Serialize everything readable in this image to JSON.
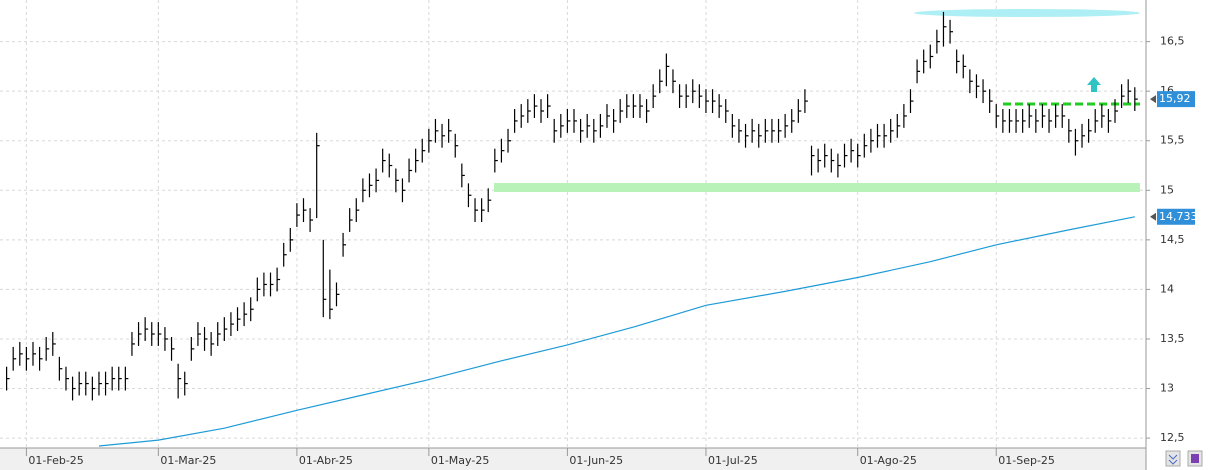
{
  "chart_data": {
    "type": "ohlc",
    "xlim": [
      -1,
      173
    ],
    "ylim": [
      12.4,
      16.92
    ],
    "xticks": [
      {
        "value": 3,
        "label": "01-Feb-25"
      },
      {
        "value": 23,
        "label": "01-Mar-25"
      },
      {
        "value": 44,
        "label": "01-Abr-25"
      },
      {
        "value": 64,
        "label": "01-May-25"
      },
      {
        "value": 85,
        "label": "01-Jun-25"
      },
      {
        "value": 106,
        "label": "01-Jul-25"
      },
      {
        "value": 129,
        "label": "01-Ago-25"
      },
      {
        "value": 150,
        "label": "01-Sep-25"
      }
    ],
    "yticks": [
      {
        "value": 12.5,
        "label": "12,5"
      },
      13,
      {
        "value": 13.5,
        "label": "13,5"
      },
      14,
      {
        "value": 14.5,
        "label": "14,5"
      },
      15,
      {
        "value": 15.5,
        "label": "15,5"
      },
      16,
      {
        "value": 16.5,
        "label": "16,5"
      }
    ],
    "grid": true,
    "color": "#000000",
    "close": [
      13.1,
      13.3,
      13.35,
      13.3,
      13.35,
      13.3,
      13.4,
      13.45,
      13.2,
      13.1,
      13.0,
      13.05,
      13.05,
      13.0,
      13.05,
      13.05,
      13.1,
      13.1,
      13.1,
      13.45,
      13.55,
      13.6,
      13.55,
      13.55,
      13.5,
      13.4,
      13.1,
      13.05,
      13.4,
      13.55,
      13.5,
      13.45,
      13.55,
      13.6,
      13.65,
      13.7,
      13.75,
      13.8,
      14.0,
      14.05,
      14.05,
      14.1,
      14.35,
      14.5,
      14.75,
      14.8,
      14.7,
      15.45,
      13.9,
      13.8,
      13.95,
      14.45,
      14.7,
      14.8,
      15.0,
      15.05,
      15.1,
      15.3,
      15.25,
      15.1,
      15.0,
      15.2,
      15.3,
      15.4,
      15.5,
      15.6,
      15.55,
      15.6,
      15.45,
      15.15,
      14.95,
      14.8,
      14.8,
      14.9,
      15.3,
      15.4,
      15.5,
      15.7,
      15.75,
      15.8,
      15.85,
      15.8,
      15.85,
      15.6,
      15.65,
      15.7,
      15.7,
      15.6,
      15.65,
      15.6,
      15.65,
      15.75,
      15.7,
      15.8,
      15.85,
      15.85,
      15.85,
      15.8,
      15.95,
      16.1,
      16.25,
      16.1,
      15.95,
      15.95,
      16.0,
      15.95,
      15.9,
      15.9,
      15.85,
      15.8,
      15.65,
      15.6,
      15.55,
      15.6,
      15.55,
      15.6,
      15.6,
      15.6,
      15.65,
      15.7,
      15.8,
      15.9,
      15.35,
      15.3,
      15.35,
      15.3,
      15.25,
      15.35,
      15.4,
      15.35,
      15.45,
      15.5,
      15.55,
      15.55,
      15.6,
      15.65,
      15.75,
      15.9,
      16.2,
      16.3,
      16.35,
      16.5,
      16.65,
      16.6,
      16.3,
      16.25,
      16.1,
      16.05,
      16.0,
      15.9,
      15.75,
      15.7,
      15.7,
      15.7,
      15.7,
      15.75,
      15.7,
      15.75,
      15.7,
      15.75,
      15.75,
      15.6,
      15.5,
      15.55,
      15.6,
      15.7,
      15.75,
      15.7,
      15.8,
      15.95,
      16.0,
      15.92
    ],
    "high": [
      13.22,
      13.42,
      13.47,
      13.42,
      13.47,
      13.42,
      13.52,
      13.57,
      13.32,
      13.22,
      13.12,
      13.17,
      13.17,
      13.12,
      13.17,
      13.17,
      13.22,
      13.22,
      13.22,
      13.57,
      13.67,
      13.72,
      13.67,
      13.67,
      13.62,
      13.52,
      13.25,
      13.17,
      13.52,
      13.67,
      13.62,
      13.57,
      13.67,
      13.72,
      13.77,
      13.82,
      13.87,
      13.92,
      14.12,
      14.17,
      14.17,
      14.22,
      14.47,
      14.62,
      14.87,
      14.92,
      14.82,
      15.58,
      14.5,
      14.2,
      14.07,
      14.57,
      14.82,
      14.92,
      15.12,
      15.17,
      15.22,
      15.42,
      15.37,
      15.22,
      15.12,
      15.32,
      15.42,
      15.52,
      15.62,
      15.72,
      15.67,
      15.72,
      15.57,
      15.27,
      15.07,
      14.92,
      14.92,
      15.02,
      15.42,
      15.52,
      15.62,
      15.82,
      15.87,
      15.92,
      15.97,
      15.92,
      15.97,
      15.72,
      15.77,
      15.82,
      15.82,
      15.72,
      15.77,
      15.72,
      15.77,
      15.87,
      15.82,
      15.92,
      15.97,
      15.97,
      15.97,
      15.92,
      16.07,
      16.22,
      16.38,
      16.22,
      16.07,
      16.07,
      16.12,
      16.07,
      16.02,
      16.02,
      15.97,
      15.92,
      15.77,
      15.72,
      15.67,
      15.72,
      15.67,
      15.72,
      15.72,
      15.72,
      15.77,
      15.82,
      15.92,
      16.02,
      15.45,
      15.42,
      15.47,
      15.42,
      15.37,
      15.47,
      15.52,
      15.47,
      15.57,
      15.62,
      15.67,
      15.67,
      15.72,
      15.77,
      15.87,
      16.02,
      16.32,
      16.42,
      16.47,
      16.62,
      16.8,
      16.72,
      16.42,
      16.37,
      16.22,
      16.17,
      16.12,
      16.02,
      15.87,
      15.82,
      15.82,
      15.82,
      15.82,
      15.87,
      15.82,
      15.87,
      15.82,
      15.87,
      15.87,
      15.72,
      15.62,
      15.67,
      15.72,
      15.82,
      15.87,
      15.82,
      15.92,
      16.07,
      16.12,
      16.04
    ],
    "low": [
      12.98,
      13.18,
      13.23,
      13.18,
      13.23,
      13.18,
      13.28,
      13.33,
      13.08,
      12.98,
      12.88,
      12.93,
      12.93,
      12.88,
      12.93,
      12.93,
      12.98,
      12.98,
      12.98,
      13.33,
      13.43,
      13.48,
      13.43,
      13.43,
      13.38,
      13.28,
      12.9,
      12.93,
      13.28,
      13.43,
      13.38,
      13.33,
      13.43,
      13.48,
      13.53,
      13.58,
      13.63,
      13.68,
      13.88,
      13.93,
      13.93,
      13.98,
      14.23,
      14.38,
      14.63,
      14.68,
      14.58,
      14.72,
      13.72,
      13.7,
      13.83,
      14.33,
      14.58,
      14.68,
      14.88,
      14.93,
      14.98,
      15.18,
      15.13,
      14.98,
      14.88,
      15.08,
      15.18,
      15.28,
      15.38,
      15.48,
      15.43,
      15.48,
      15.33,
      15.03,
      14.83,
      14.68,
      14.68,
      14.78,
      15.18,
      15.28,
      15.38,
      15.58,
      15.63,
      15.68,
      15.73,
      15.68,
      15.73,
      15.48,
      15.53,
      15.58,
      15.58,
      15.48,
      15.53,
      15.48,
      15.53,
      15.63,
      15.58,
      15.68,
      15.73,
      15.73,
      15.73,
      15.68,
      15.83,
      15.98,
      16.05,
      15.98,
      15.83,
      15.83,
      15.88,
      15.83,
      15.78,
      15.78,
      15.73,
      15.68,
      15.53,
      15.48,
      15.43,
      15.48,
      15.43,
      15.48,
      15.48,
      15.48,
      15.53,
      15.58,
      15.68,
      15.78,
      15.15,
      15.18,
      15.23,
      15.18,
      15.13,
      15.23,
      15.28,
      15.23,
      15.33,
      15.38,
      15.43,
      15.43,
      15.48,
      15.53,
      15.63,
      15.78,
      16.08,
      16.18,
      16.23,
      16.38,
      16.45,
      16.48,
      16.18,
      16.13,
      15.98,
      15.93,
      15.88,
      15.78,
      15.63,
      15.58,
      15.58,
      15.58,
      15.58,
      15.63,
      15.58,
      15.63,
      15.58,
      15.63,
      15.63,
      15.48,
      15.35,
      15.43,
      15.48,
      15.58,
      15.63,
      15.58,
      15.68,
      15.83,
      15.88,
      15.8
    ],
    "moving_average": {
      "color": "#1e9bd7",
      "x": [
        14,
        23,
        33,
        44,
        53,
        64,
        75,
        85,
        95,
        106,
        118,
        129,
        140,
        150,
        161,
        171
      ],
      "values": [
        12.42,
        12.48,
        12.6,
        12.78,
        12.92,
        13.09,
        13.28,
        13.44,
        13.62,
        13.84,
        13.98,
        14.12,
        14.28,
        14.45,
        14.6,
        14.733
      ]
    },
    "price_tags": [
      {
        "value": 15.92,
        "label": "15,92"
      },
      {
        "value": 14.733,
        "label": "14,733"
      }
    ]
  }
}
